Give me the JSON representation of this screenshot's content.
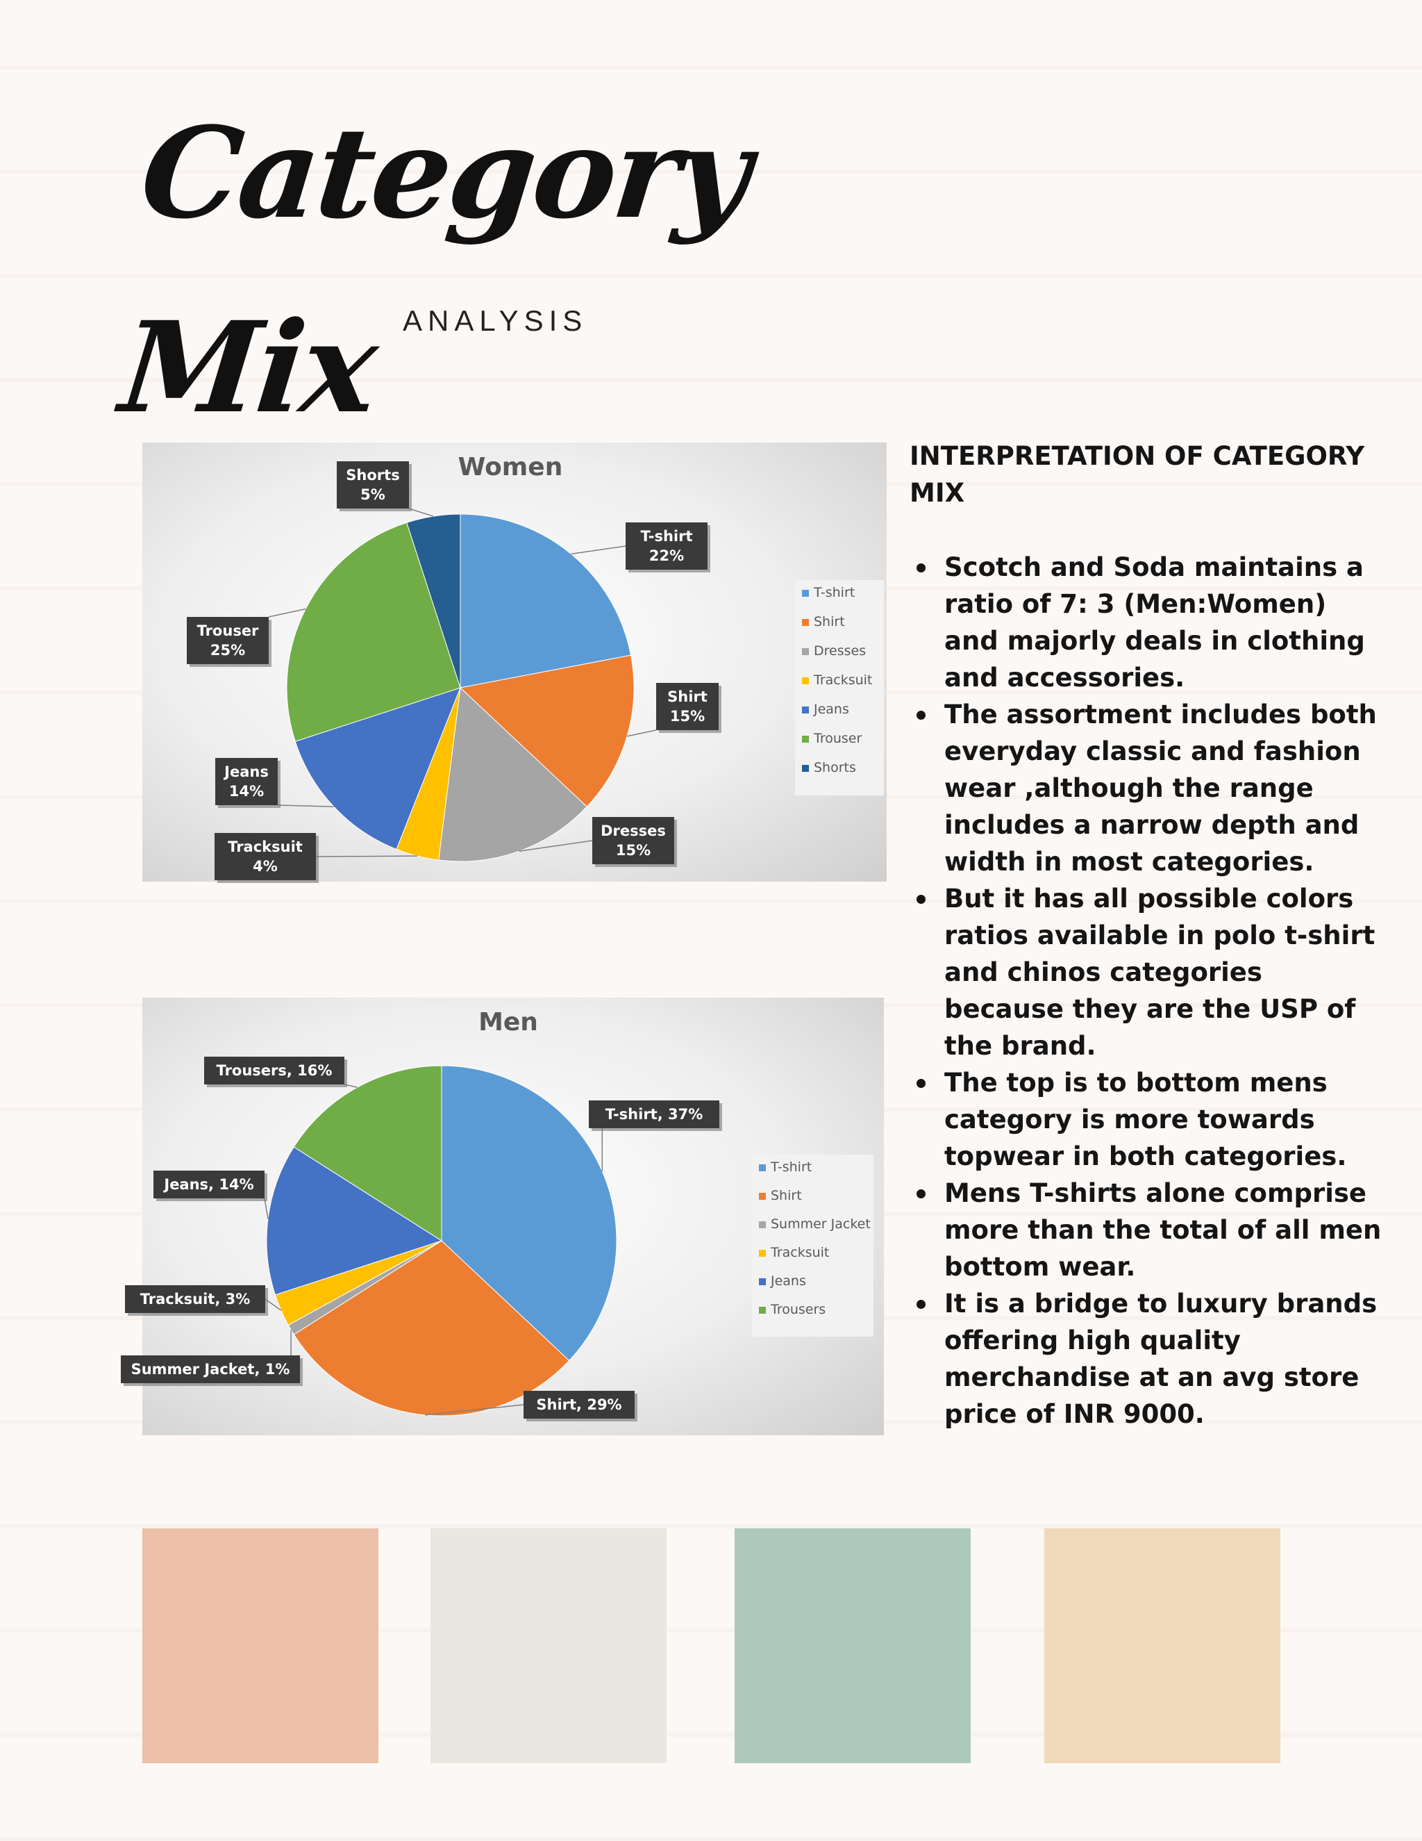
{
  "page": {
    "title": "Category Mix",
    "subtitle": "ANALYSIS"
  },
  "interpretation": {
    "heading": "INTERPRETATION OF CATEGORY MIX",
    "bullets": [
      "Scotch and Soda maintains a ratio of 7: 3 (Men:Women) and majorly deals in clothing and accessories.",
      "The assortment includes both everyday classic and fashion wear ,although the range includes a narrow depth and width in most categories.",
      "But it has all possible colors ratios available in polo t-shirt and chinos categories because they are the USP of the brand.",
      "The top is to bottom mens category is more towards topwear in both categories.",
      "Mens T-shirts alone comprise more than the total of all men bottom wear.",
      "It is a bridge to luxury brands offering high quality merchandise at an avg store price of INR 9000."
    ]
  },
  "swatches": [
    "#ebbfa8",
    "#eae6e0",
    "#acc9bc",
    "#f0d9bb"
  ],
  "chart_data": [
    {
      "type": "pie",
      "title": "Women",
      "categories": [
        "T-shirt",
        "Shirt",
        "Dresses",
        "Tracksuit",
        "Jeans",
        "Trouser",
        "Shorts"
      ],
      "values": [
        22,
        15,
        15,
        4,
        14,
        25,
        5
      ],
      "data_labels": [
        "T-shirt\n22%",
        "Shirt\n15%",
        "Dresses\n15%",
        "Tracksuit\n4%",
        "Jeans\n14%",
        "Trouser\n25%",
        "Shorts\n5%"
      ],
      "colors": [
        "#5b9bd5",
        "#ed7d31",
        "#a5a5a5",
        "#ffc000",
        "#4472c4",
        "#70ad47",
        "#255e91"
      ],
      "legend": "right"
    },
    {
      "type": "pie",
      "title": "Men",
      "categories": [
        "T-shirt",
        "Shirt",
        "Summer Jacket",
        "Tracksuit",
        "Jeans",
        "Trousers"
      ],
      "values": [
        37,
        29,
        1,
        3,
        14,
        16
      ],
      "data_labels": [
        "T-shirt, 37%",
        "Shirt, 29%",
        "Summer Jacket, 1%",
        "Tracksuit, 3%",
        "Jeans, 14%",
        "Trousers, 16%"
      ],
      "colors": [
        "#5b9bd5",
        "#ed7d31",
        "#a5a5a5",
        "#ffc000",
        "#4472c4",
        "#70ad47"
      ],
      "legend": "right"
    }
  ]
}
